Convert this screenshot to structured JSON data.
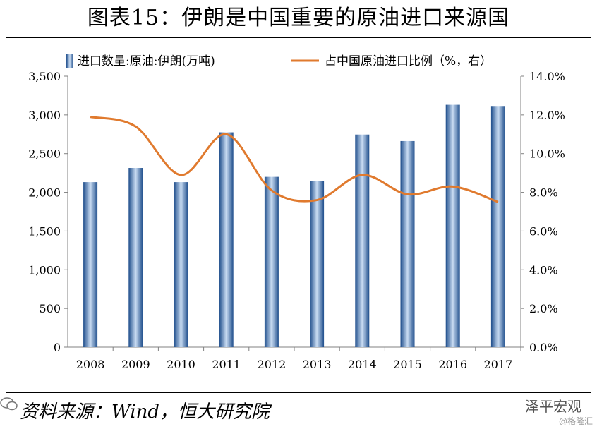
{
  "figure": {
    "title": "图表15：伊朗是中国重要的原油进口来源国",
    "source": "资料来源：Wind，恒大研究院",
    "watermark": "泽平宏观",
    "watermark_sub": "@格隆汇"
  },
  "colors": {
    "bar_dark": "#1f4e8c",
    "bar_light": "#c9dcf2",
    "line": "#e07a2e",
    "axis": "#808080"
  },
  "chart_data": {
    "type": "bar",
    "categories": [
      "2008",
      "2009",
      "2010",
      "2011",
      "2012",
      "2013",
      "2014",
      "2015",
      "2016",
      "2017"
    ],
    "series": [
      {
        "name": "进口数量:原油:伊朗(万吨)",
        "type": "bar",
        "axis": "left",
        "values": [
          2132,
          2315,
          2132,
          2775,
          2200,
          2144,
          2746,
          2662,
          3130,
          3115
        ]
      },
      {
        "name": "占中国原油进口比例（%，右）",
        "type": "line",
        "axis": "right",
        "values": [
          11.9,
          11.4,
          8.9,
          11.0,
          8.1,
          7.6,
          8.9,
          7.9,
          8.3,
          7.5
        ]
      }
    ],
    "y_left": {
      "lim": [
        0,
        3500
      ],
      "ticks": [
        "0",
        "500",
        "1,000",
        "1,500",
        "2,000",
        "2,500",
        "3,000",
        "3,500"
      ]
    },
    "y_right": {
      "lim": [
        0,
        14
      ],
      "ticks": [
        "0.0%",
        "2.0%",
        "4.0%",
        "6.0%",
        "8.0%",
        "10.0%",
        "12.0%",
        "14.0%"
      ]
    },
    "grid": false,
    "legend_position": "top"
  }
}
